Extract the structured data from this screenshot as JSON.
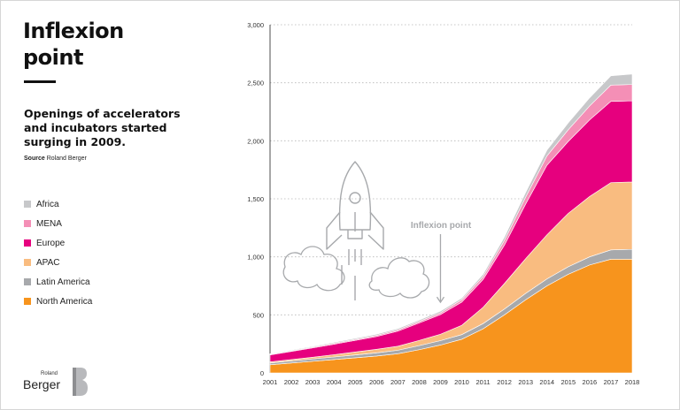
{
  "page": {
    "title_line1": "Inflexion",
    "title_line2": "point",
    "subtitle": "Openings of accelerators and incubators started surging in 2009.",
    "source_label": "Source",
    "source_value": "Roland Berger",
    "brand_small": "Roland",
    "brand_big": "Berger"
  },
  "colors": {
    "north_america": "#f7941d",
    "latin_america": "#a7a9ac",
    "apac": "#f9bc80",
    "europe": "#e6007e",
    "mena": "#f48fb6",
    "africa": "#c7c8ca",
    "illustration": "#a7a9ac"
  },
  "chart_data": {
    "type": "area",
    "stacked": true,
    "title": "Openings of accelerators and incubators started surging in 2009.",
    "x": [
      "2001",
      "2002",
      "2003",
      "2004",
      "2005",
      "2006",
      "2007",
      "2008",
      "2009",
      "2010",
      "2011",
      "2012",
      "2013",
      "2014",
      "2015",
      "2016",
      "2017",
      "2018"
    ],
    "ylim": [
      0,
      3000
    ],
    "yticks": [
      "0",
      "500",
      "1,000",
      "1,500",
      "2,000",
      "2,500",
      "3,000"
    ],
    "ytick_values": [
      0,
      500,
      1000,
      1500,
      2000,
      2500,
      3000
    ],
    "grid": "horizontal dotted",
    "legend_position": "left",
    "series": [
      {
        "name": "North America",
        "key": "north_america",
        "values": [
          70,
          85,
          100,
          115,
          130,
          145,
          165,
          200,
          240,
          290,
          380,
          500,
          630,
          750,
          850,
          930,
          980,
          980
        ]
      },
      {
        "name": "Latin America",
        "key": "latin_america",
        "values": [
          15,
          18,
          20,
          22,
          25,
          28,
          30,
          35,
          38,
          40,
          45,
          50,
          55,
          60,
          65,
          70,
          80,
          85
        ]
      },
      {
        "name": "APAC",
        "key": "apac",
        "values": [
          10,
          12,
          15,
          20,
          25,
          30,
          35,
          45,
          55,
          80,
          140,
          220,
          300,
          380,
          460,
          520,
          580,
          580
        ]
      },
      {
        "name": "Europe",
        "key": "europe",
        "values": [
          60,
          70,
          80,
          90,
          100,
          110,
          130,
          150,
          170,
          200,
          240,
          330,
          470,
          600,
          620,
          660,
          700,
          700
        ]
      },
      {
        "name": "MENA",
        "key": "mena",
        "values": [
          5,
          6,
          7,
          8,
          9,
          10,
          11,
          13,
          15,
          20,
          25,
          40,
          60,
          80,
          100,
          120,
          140,
          140
        ]
      },
      {
        "name": "Africa",
        "key": "africa",
        "values": [
          5,
          6,
          7,
          8,
          9,
          10,
          11,
          12,
          14,
          15,
          20,
          30,
          40,
          50,
          60,
          70,
          80,
          90
        ]
      }
    ],
    "legend_order": [
      "Africa",
      "MENA",
      "Europe",
      "APAC",
      "Latin America",
      "North America"
    ],
    "annotation": {
      "text": "Inflexion point",
      "x": "2009"
    }
  }
}
